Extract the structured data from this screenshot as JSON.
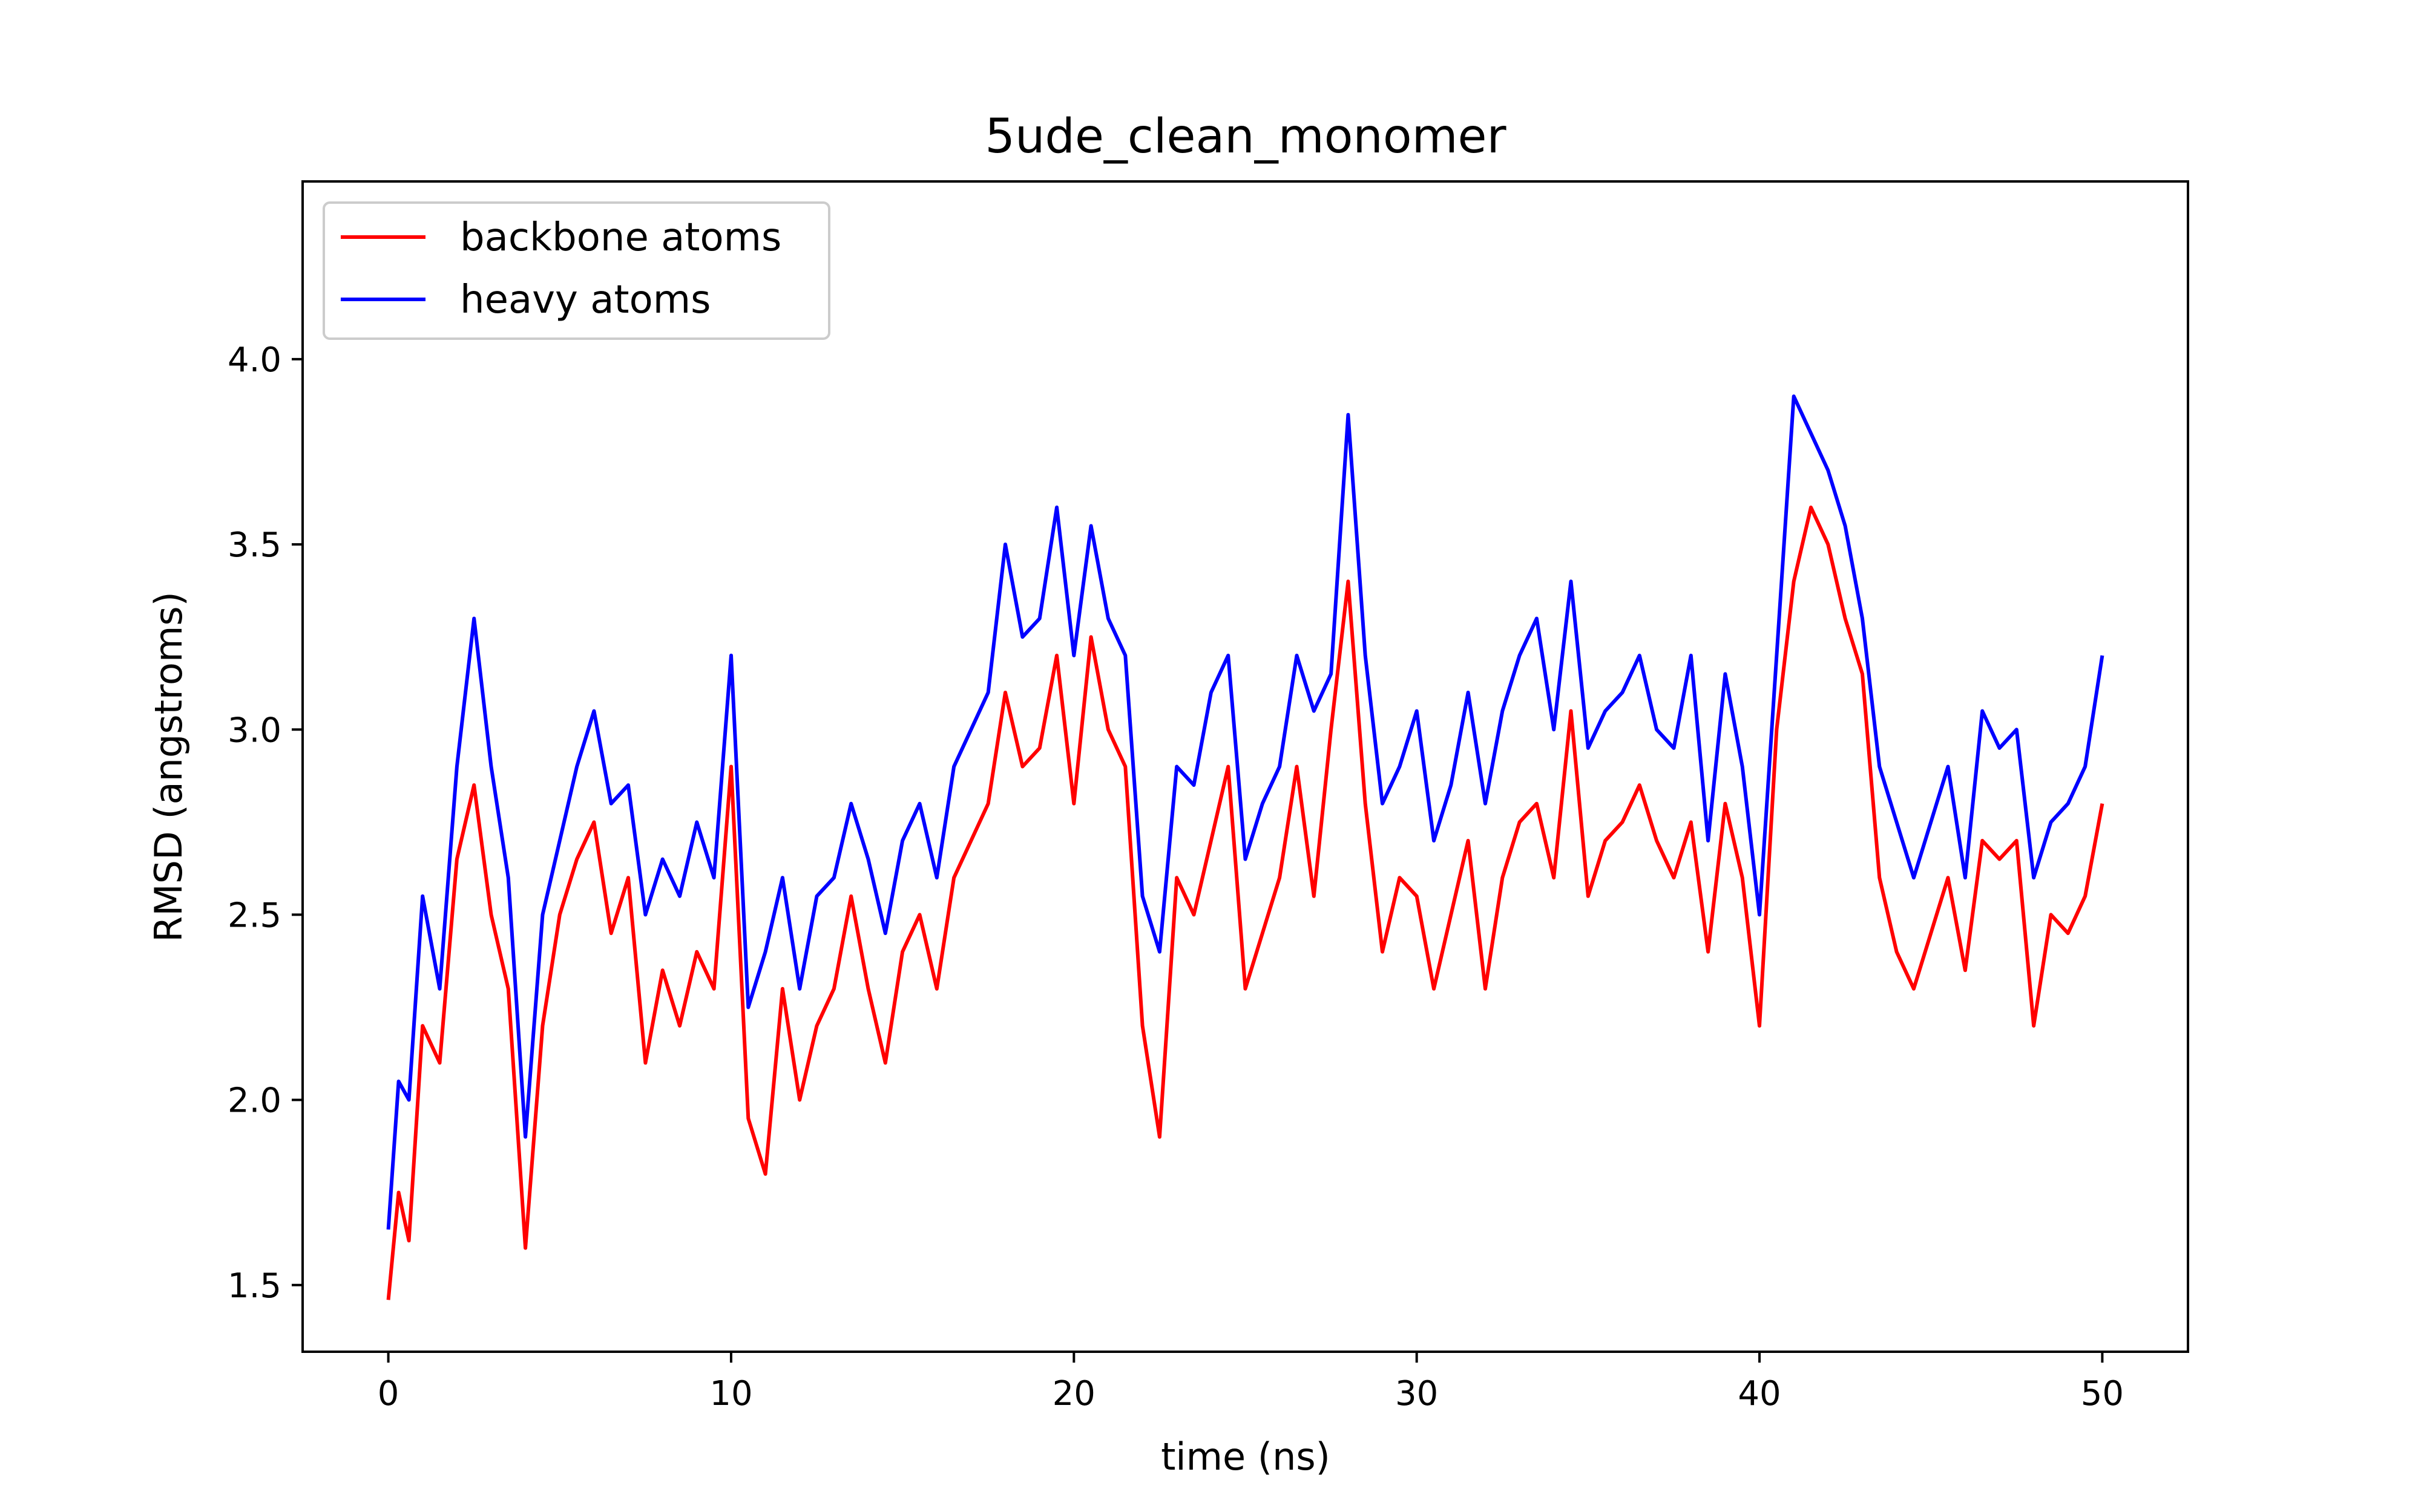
{
  "chart_data": {
    "type": "line",
    "title": "5ude_clean_monomer",
    "xlabel": "time (ns)",
    "ylabel": "RMSD (angstroms)",
    "xlim": [
      -2.5,
      52.5
    ],
    "ylim": [
      1.32,
      4.48
    ],
    "xticks": [
      0,
      10,
      20,
      30,
      40,
      50
    ],
    "xtick_labels": [
      "0",
      "10",
      "20",
      "30",
      "40",
      "50"
    ],
    "yticks": [
      1.5,
      2.0,
      2.5,
      3.0,
      3.5,
      4.0
    ],
    "ytick_labels": [
      "1.5",
      "2.0",
      "2.5",
      "3.0",
      "3.5",
      "4.0"
    ],
    "grid": false,
    "legend": "top-left",
    "series": [
      {
        "name": "backbone atoms",
        "color": "#ff0000",
        "x": [
          0,
          0.3,
          0.6,
          1,
          1.5,
          2,
          2.5,
          3,
          3.5,
          4,
          4.5,
          5,
          5.5,
          6,
          6.5,
          7,
          7.5,
          8,
          8.5,
          9,
          9.5,
          10,
          10.5,
          11,
          11.5,
          12,
          12.5,
          13,
          13.5,
          14,
          14.5,
          15,
          15.5,
          16,
          16.5,
          17,
          17.5,
          18,
          18.5,
          19,
          19.5,
          20,
          20.5,
          21,
          21.5,
          22,
          22.5,
          23,
          23.5,
          24,
          24.5,
          25,
          25.5,
          26,
          26.5,
          27,
          27.5,
          28,
          28.5,
          29,
          29.5,
          30,
          30.5,
          31,
          31.5,
          32,
          32.5,
          33,
          33.5,
          34,
          34.5,
          35,
          35.5,
          36,
          36.5,
          37,
          37.5,
          38,
          38.5,
          39,
          39.5,
          40,
          40.5,
          41,
          41.5,
          42,
          42.5,
          43,
          43.5,
          44,
          44.5,
          45,
          45.5,
          46,
          46.5,
          47,
          47.5,
          48,
          48.5,
          49,
          49.5,
          50
        ],
        "y": [
          1.46,
          1.75,
          1.62,
          2.2,
          2.1,
          2.65,
          2.85,
          2.5,
          2.3,
          1.6,
          2.2,
          2.5,
          2.65,
          2.75,
          2.45,
          2.6,
          2.1,
          2.35,
          2.2,
          2.4,
          2.3,
          2.9,
          1.95,
          1.8,
          2.3,
          2.0,
          2.2,
          2.3,
          2.55,
          2.3,
          2.1,
          2.4,
          2.5,
          2.3,
          2.6,
          2.7,
          2.8,
          3.1,
          2.9,
          2.95,
          3.2,
          2.8,
          3.25,
          3.0,
          2.9,
          2.2,
          1.9,
          2.6,
          2.5,
          2.7,
          2.9,
          2.3,
          2.45,
          2.6,
          2.9,
          2.55,
          3.0,
          3.4,
          2.8,
          2.4,
          2.6,
          2.55,
          2.3,
          2.5,
          2.7,
          2.3,
          2.6,
          2.75,
          2.8,
          2.6,
          3.05,
          2.55,
          2.7,
          2.75,
          2.85,
          2.7,
          2.6,
          2.75,
          2.4,
          2.8,
          2.6,
          2.2,
          3.0,
          3.4,
          3.6,
          3.5,
          3.3,
          3.15,
          2.6,
          2.4,
          2.3,
          2.45,
          2.6,
          2.35,
          2.7,
          2.65,
          2.7,
          2.2,
          2.5,
          2.45,
          2.55,
          2.8
        ]
      },
      {
        "name": "heavy atoms",
        "color": "#0000ff",
        "x": [
          0,
          0.3,
          0.6,
          1,
          1.5,
          2,
          2.5,
          3,
          3.5,
          4,
          4.5,
          5,
          5.5,
          6,
          6.5,
          7,
          7.5,
          8,
          8.5,
          9,
          9.5,
          10,
          10.5,
          11,
          11.5,
          12,
          12.5,
          13,
          13.5,
          14,
          14.5,
          15,
          15.5,
          16,
          16.5,
          17,
          17.5,
          18,
          18.5,
          19,
          19.5,
          20,
          20.5,
          21,
          21.5,
          22,
          22.5,
          23,
          23.5,
          24,
          24.5,
          25,
          25.5,
          26,
          26.5,
          27,
          27.5,
          28,
          28.5,
          29,
          29.5,
          30,
          30.5,
          31,
          31.5,
          32,
          32.5,
          33,
          33.5,
          34,
          34.5,
          35,
          35.5,
          36,
          36.5,
          37,
          37.5,
          38,
          38.5,
          39,
          39.5,
          40,
          40.5,
          41,
          41.5,
          42,
          42.5,
          43,
          43.5,
          44,
          44.5,
          45,
          45.5,
          46,
          46.5,
          47,
          47.5,
          48,
          48.5,
          49,
          49.5,
          50
        ],
        "y": [
          1.65,
          2.05,
          2.0,
          2.55,
          2.3,
          2.9,
          3.3,
          2.9,
          2.6,
          1.9,
          2.5,
          2.7,
          2.9,
          3.05,
          2.8,
          2.85,
          2.5,
          2.65,
          2.55,
          2.75,
          2.6,
          3.2,
          2.25,
          2.4,
          2.6,
          2.3,
          2.55,
          2.6,
          2.8,
          2.65,
          2.45,
          2.7,
          2.8,
          2.6,
          2.9,
          3.0,
          3.1,
          3.5,
          3.25,
          3.3,
          3.6,
          3.2,
          3.55,
          3.3,
          3.2,
          2.55,
          2.4,
          2.9,
          2.85,
          3.1,
          3.2,
          2.65,
          2.8,
          2.9,
          3.2,
          3.05,
          3.15,
          3.85,
          3.2,
          2.8,
          2.9,
          3.05,
          2.7,
          2.85,
          3.1,
          2.8,
          3.05,
          3.2,
          3.3,
          3.0,
          3.4,
          2.95,
          3.05,
          3.1,
          3.2,
          3.0,
          2.95,
          3.2,
          2.7,
          3.15,
          2.9,
          2.5,
          3.2,
          3.9,
          3.8,
          3.7,
          3.55,
          3.3,
          2.9,
          2.75,
          2.6,
          2.75,
          2.9,
          2.6,
          3.05,
          2.95,
          3.0,
          2.6,
          2.75,
          2.8,
          2.9,
          3.2
        ]
      }
    ]
  }
}
